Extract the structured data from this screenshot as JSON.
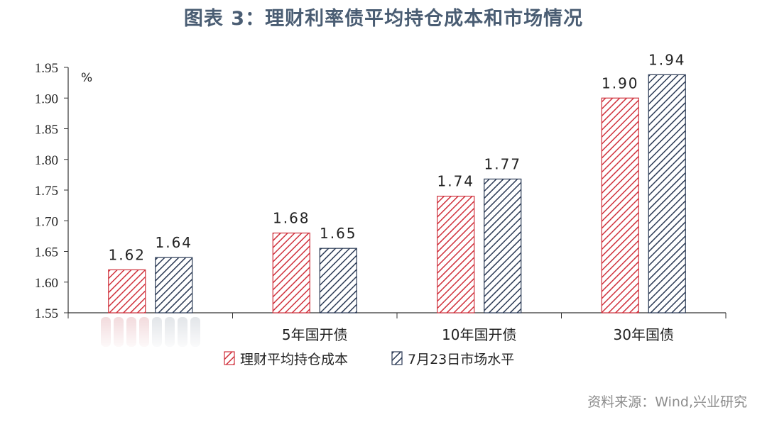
{
  "title": "图表 3：理财利率债平均持仓成本和市场情况",
  "source": "资料来源：Wind,兴业研究",
  "chart_data": {
    "type": "bar",
    "unit": "%",
    "categories": [
      "",
      "5年国开债",
      "10年国开债",
      "30年国债"
    ],
    "series": [
      {
        "name": "理财平均持仓成本",
        "values": [
          1.62,
          1.68,
          1.74,
          1.9
        ],
        "labels": [
          "1.62",
          "1.68",
          "1.74",
          "1.90"
        ],
        "color": "#d0313c"
      },
      {
        "name": "7月23日市场水平",
        "values": [
          1.64,
          1.655,
          1.768,
          1.938
        ],
        "labels": [
          "1.64",
          "1.65",
          "1.77",
          "1.94"
        ],
        "color": "#2b3a55"
      }
    ],
    "ylim": [
      1.55,
      1.95
    ],
    "yticks": [
      "1.55",
      "1.60",
      "1.65",
      "1.70",
      "1.75",
      "1.80",
      "1.85",
      "1.90",
      "1.95"
    ],
    "legend_position": "bottom",
    "grid": false
  }
}
